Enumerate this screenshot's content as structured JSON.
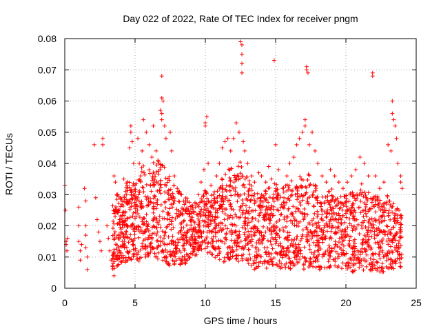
{
  "chart_data": {
    "type": "scatter",
    "title": "Day 022 of 2022, Rate Of TEC Index for receiver pngm",
    "xlabel": "GPS time / hours",
    "ylabel": "ROTI / TECUs",
    "xlim": [
      0,
      25
    ],
    "ylim": [
      0,
      0.08
    ],
    "x_ticks": [
      0,
      5,
      10,
      15,
      20,
      25
    ],
    "x_tick_labels": [
      "0",
      "5",
      "10",
      "15",
      "20",
      "25"
    ],
    "y_ticks": [
      0,
      0.01,
      0.02,
      0.03,
      0.04,
      0.05,
      0.06,
      0.07,
      0.08
    ],
    "y_tick_labels": [
      "0",
      "0.01",
      "0.02",
      "0.03",
      "0.04",
      "0.05",
      "0.06",
      "0.07",
      "0.08"
    ],
    "grid": true,
    "marker": "+",
    "color": "#ff0000",
    "series": [
      {
        "name": "ROTI",
        "points": [
          [
            0.0,
            0.033
          ],
          [
            0.05,
            0.025
          ],
          [
            0.1,
            0.015
          ],
          [
            0.1,
            0.014
          ],
          [
            0.15,
            0.012
          ],
          [
            0.2,
            0.016
          ],
          [
            1.0,
            0.026
          ],
          [
            1.0,
            0.02
          ],
          [
            1.0,
            0.015
          ],
          [
            1.1,
            0.012
          ],
          [
            1.1,
            0.009
          ],
          [
            1.2,
            0.014
          ],
          [
            1.4,
            0.032
          ],
          [
            1.5,
            0.028
          ],
          [
            1.5,
            0.02
          ],
          [
            1.5,
            0.017
          ],
          [
            1.5,
            0.013
          ],
          [
            1.6,
            0.01
          ],
          [
            1.6,
            0.006
          ],
          [
            2.2,
            0.029
          ],
          [
            2.3,
            0.022
          ],
          [
            2.4,
            0.018
          ],
          [
            2.5,
            0.015
          ],
          [
            2.6,
            0.012
          ],
          [
            2.1,
            0.046
          ],
          [
            2.7,
            0.048
          ],
          [
            2.7,
            0.046
          ],
          [
            3.0,
            0.02
          ],
          [
            3.1,
            0.016
          ],
          [
            3.2,
            0.012
          ],
          [
            3.3,
            0.009
          ],
          [
            3.4,
            0.007
          ],
          [
            3.5,
            0.004
          ],
          [
            3.5,
            0.036
          ],
          [
            3.6,
            0.034
          ],
          [
            3.7,
            0.03
          ],
          [
            3.8,
            0.025
          ],
          [
            3.9,
            0.022
          ],
          [
            4.0,
            0.018
          ],
          [
            4.2,
            0.035
          ],
          [
            4.4,
            0.03
          ],
          [
            4.5,
            0.028
          ],
          [
            4.6,
            0.045
          ],
          [
            4.7,
            0.05
          ],
          [
            4.7,
            0.052
          ],
          [
            4.8,
            0.047
          ],
          [
            4.9,
            0.04
          ],
          [
            5.0,
            0.033
          ],
          [
            5.2,
            0.048
          ],
          [
            5.3,
            0.04
          ],
          [
            5.4,
            0.036
          ],
          [
            5.5,
            0.044
          ],
          [
            5.6,
            0.054
          ],
          [
            5.8,
            0.05
          ],
          [
            6.0,
            0.046
          ],
          [
            6.2,
            0.042
          ],
          [
            6.3,
            0.052
          ],
          [
            6.5,
            0.044
          ],
          [
            6.7,
            0.04
          ],
          [
            6.8,
            0.057
          ],
          [
            6.9,
            0.056
          ],
          [
            6.9,
            0.054
          ],
          [
            6.9,
            0.061
          ],
          [
            7.0,
            0.06
          ],
          [
            6.9,
            0.068
          ],
          [
            7.1,
            0.052
          ],
          [
            7.2,
            0.048
          ],
          [
            7.5,
            0.05
          ],
          [
            7.6,
            0.044
          ],
          [
            7.8,
            0.036
          ],
          [
            8.0,
            0.032
          ],
          [
            8.3,
            0.03
          ],
          [
            8.6,
            0.028
          ],
          [
            8.8,
            0.025
          ],
          [
            9.0,
            0.024
          ],
          [
            9.3,
            0.026
          ],
          [
            9.5,
            0.03
          ],
          [
            9.7,
            0.034
          ],
          [
            9.9,
            0.038
          ],
          [
            10.0,
            0.052
          ],
          [
            10.0,
            0.053
          ],
          [
            10.1,
            0.055
          ],
          [
            10.2,
            0.04
          ],
          [
            10.4,
            0.033
          ],
          [
            10.6,
            0.03
          ],
          [
            10.8,
            0.036
          ],
          [
            11.0,
            0.04
          ],
          [
            11.2,
            0.045
          ],
          [
            11.4,
            0.047
          ],
          [
            11.6,
            0.048
          ],
          [
            11.8,
            0.044
          ],
          [
            12.0,
            0.048
          ],
          [
            12.2,
            0.053
          ],
          [
            12.4,
            0.05
          ],
          [
            12.5,
            0.079
          ],
          [
            12.6,
            0.078
          ],
          [
            12.6,
            0.075
          ],
          [
            12.6,
            0.072
          ],
          [
            12.6,
            0.069
          ],
          [
            12.7,
            0.047
          ],
          [
            12.8,
            0.044
          ],
          [
            13.0,
            0.04
          ],
          [
            13.3,
            0.036
          ],
          [
            13.5,
            0.034
          ],
          [
            13.8,
            0.037
          ],
          [
            14.0,
            0.036
          ],
          [
            14.3,
            0.034
          ],
          [
            14.5,
            0.039
          ],
          [
            14.7,
            0.035
          ],
          [
            14.9,
            0.073
          ],
          [
            15.0,
            0.046
          ],
          [
            15.2,
            0.038
          ],
          [
            15.5,
            0.032
          ],
          [
            15.8,
            0.036
          ],
          [
            16.0,
            0.04
          ],
          [
            16.3,
            0.042
          ],
          [
            16.5,
            0.046
          ],
          [
            16.7,
            0.048
          ],
          [
            16.9,
            0.05
          ],
          [
            17.1,
            0.054
          ],
          [
            17.1,
            0.052
          ],
          [
            17.2,
            0.071
          ],
          [
            17.2,
            0.07
          ],
          [
            17.3,
            0.069
          ],
          [
            17.4,
            0.046
          ],
          [
            17.6,
            0.05
          ],
          [
            17.8,
            0.044
          ],
          [
            18.0,
            0.04
          ],
          [
            18.3,
            0.036
          ],
          [
            18.6,
            0.034
          ],
          [
            18.9,
            0.038
          ],
          [
            19.2,
            0.036
          ],
          [
            19.5,
            0.034
          ],
          [
            19.8,
            0.032
          ],
          [
            20.1,
            0.034
          ],
          [
            20.4,
            0.036
          ],
          [
            20.7,
            0.038
          ],
          [
            21.0,
            0.042
          ],
          [
            21.3,
            0.04
          ],
          [
            21.6,
            0.036
          ],
          [
            21.9,
            0.069
          ],
          [
            21.9,
            0.068
          ],
          [
            22.1,
            0.036
          ],
          [
            22.4,
            0.032
          ],
          [
            22.7,
            0.034
          ],
          [
            23.0,
            0.046
          ],
          [
            23.2,
            0.044
          ],
          [
            23.3,
            0.06
          ],
          [
            23.3,
            0.056
          ],
          [
            23.4,
            0.054
          ],
          [
            23.5,
            0.052
          ],
          [
            23.6,
            0.048
          ],
          [
            23.7,
            0.04
          ],
          [
            23.9,
            0.036
          ],
          [
            23.9,
            0.034
          ],
          [
            24.0,
            0.032
          ]
        ],
        "dense_envelope": [
          [
            3.4,
            0.006,
            0.032
          ],
          [
            3.8,
            0.007,
            0.03
          ],
          [
            4.2,
            0.008,
            0.033
          ],
          [
            4.6,
            0.009,
            0.035
          ],
          [
            5.0,
            0.008,
            0.034
          ],
          [
            5.5,
            0.009,
            0.04
          ],
          [
            6.0,
            0.01,
            0.038
          ],
          [
            6.5,
            0.009,
            0.042
          ],
          [
            7.0,
            0.008,
            0.04
          ],
          [
            7.5,
            0.007,
            0.036
          ],
          [
            8.0,
            0.008,
            0.033
          ],
          [
            8.5,
            0.007,
            0.03
          ],
          [
            9.0,
            0.01,
            0.028
          ],
          [
            9.5,
            0.011,
            0.027
          ],
          [
            10.0,
            0.012,
            0.032
          ],
          [
            10.5,
            0.01,
            0.03
          ],
          [
            11.0,
            0.009,
            0.035
          ],
          [
            11.5,
            0.008,
            0.038
          ],
          [
            12.0,
            0.009,
            0.04
          ],
          [
            12.5,
            0.008,
            0.042
          ],
          [
            13.0,
            0.008,
            0.036
          ],
          [
            13.5,
            0.006,
            0.032
          ],
          [
            14.0,
            0.007,
            0.03
          ],
          [
            14.5,
            0.006,
            0.033
          ],
          [
            15.0,
            0.007,
            0.034
          ],
          [
            15.5,
            0.006,
            0.032
          ],
          [
            16.0,
            0.006,
            0.034
          ],
          [
            16.5,
            0.007,
            0.036
          ],
          [
            17.0,
            0.006,
            0.038
          ],
          [
            17.5,
            0.007,
            0.036
          ],
          [
            18.0,
            0.006,
            0.032
          ],
          [
            18.5,
            0.006,
            0.03
          ],
          [
            19.0,
            0.007,
            0.032
          ],
          [
            19.5,
            0.006,
            0.03
          ],
          [
            20.0,
            0.006,
            0.031
          ],
          [
            20.5,
            0.005,
            0.032
          ],
          [
            21.0,
            0.006,
            0.034
          ],
          [
            21.5,
            0.005,
            0.032
          ],
          [
            22.0,
            0.006,
            0.03
          ],
          [
            22.5,
            0.005,
            0.029
          ],
          [
            23.0,
            0.006,
            0.03
          ],
          [
            23.5,
            0.006,
            0.028
          ],
          [
            24.0,
            0.007,
            0.024
          ]
        ]
      }
    ]
  }
}
